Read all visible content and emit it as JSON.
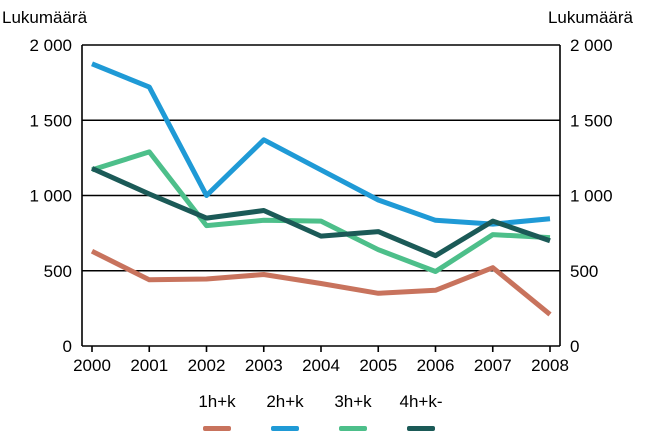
{
  "chart_data": {
    "type": "line",
    "ylabel_left": "Lukumäärä",
    "ylabel_right": "Lukumäärä",
    "ylim": [
      0,
      2000
    ],
    "yticks": [
      0,
      500,
      1000,
      1500,
      2000
    ],
    "ytick_labels": [
      "0",
      "500",
      "1 000",
      "1 500",
      "2 000"
    ],
    "categories": [
      "2000",
      "2001",
      "2002",
      "2003",
      "2004",
      "2005",
      "2006",
      "2007",
      "2008"
    ],
    "grid": "horizontal",
    "legend_position": "bottom",
    "series": [
      {
        "name": "1h+k",
        "color": "#c8735d",
        "values": [
          630,
          440,
          445,
          475,
          415,
          350,
          370,
          520,
          210
        ]
      },
      {
        "name": "2h+k",
        "color": "#1f9ad6",
        "values": [
          1875,
          1720,
          1000,
          1370,
          1170,
          970,
          835,
          810,
          845
        ]
      },
      {
        "name": "3h+k",
        "color": "#4dbf8a",
        "values": [
          1170,
          1290,
          800,
          835,
          830,
          640,
          495,
          740,
          720
        ]
      },
      {
        "name": "4h+k-",
        "color": "#1b5a57",
        "values": [
          1180,
          1010,
          850,
          900,
          730,
          760,
          600,
          830,
          700
        ]
      }
    ]
  }
}
